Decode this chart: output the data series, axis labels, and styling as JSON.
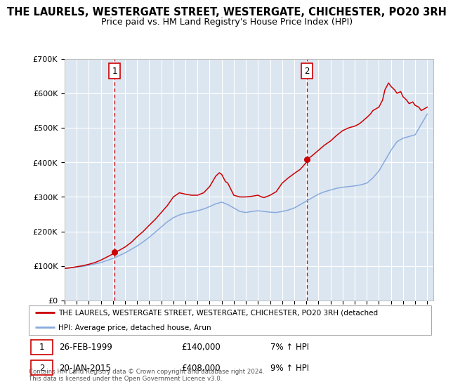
{
  "title": "THE LAURELS, WESTERGATE STREET, WESTERGATE, CHICHESTER, PO20 3RH",
  "subtitle": "Price paid vs. HM Land Registry's House Price Index (HPI)",
  "title_fontsize": 10.5,
  "subtitle_fontsize": 9,
  "ylim": [
    0,
    700000
  ],
  "yticks": [
    0,
    100000,
    200000,
    300000,
    400000,
    500000,
    600000,
    700000
  ],
  "ytick_labels": [
    "£0",
    "£100K",
    "£200K",
    "£300K",
    "£400K",
    "£500K",
    "£600K",
    "£700K"
  ],
  "xlim_start": 1995.0,
  "xlim_end": 2025.5,
  "sale1_date": 1999.15,
  "sale1_price": 140000,
  "sale1_label": "1",
  "sale1_text": "26-FEB-1999",
  "sale1_amount": "£140,000",
  "sale1_hpi": "7% ↑ HPI",
  "sale2_date": 2015.05,
  "sale2_price": 408000,
  "sale2_label": "2",
  "sale2_text": "20-JAN-2015",
  "sale2_amount": "£408,000",
  "sale2_hpi": "9% ↑ HPI",
  "property_color": "#cc0000",
  "hpi_color": "#88aadd",
  "background_color": "#dce6f1",
  "grid_color": "#ffffff",
  "legend_property": "THE LAURELS, WESTERGATE STREET, WESTERGATE, CHICHESTER, PO20 3RH (detached",
  "legend_hpi": "HPI: Average price, detached house, Arun",
  "footer_text": "Contains HM Land Registry data © Crown copyright and database right 2024.\nThis data is licensed under the Open Government Licence v3.0.",
  "hpi_years": [
    1995.0,
    1995.5,
    1996.0,
    1996.5,
    1997.0,
    1997.5,
    1998.0,
    1998.5,
    1999.0,
    1999.5,
    2000.0,
    2000.5,
    2001.0,
    2001.5,
    2002.0,
    2002.5,
    2003.0,
    2003.5,
    2004.0,
    2004.5,
    2005.0,
    2005.5,
    2006.0,
    2006.5,
    2007.0,
    2007.5,
    2008.0,
    2008.5,
    2009.0,
    2009.5,
    2010.0,
    2010.5,
    2011.0,
    2011.5,
    2012.0,
    2012.5,
    2013.0,
    2013.5,
    2014.0,
    2014.5,
    2015.0,
    2015.5,
    2016.0,
    2016.5,
    2017.0,
    2017.5,
    2018.0,
    2018.5,
    2019.0,
    2019.5,
    2020.0,
    2020.5,
    2021.0,
    2021.5,
    2022.0,
    2022.5,
    2023.0,
    2023.5,
    2024.0,
    2024.5,
    2025.0
  ],
  "hpi_values": [
    93000,
    95000,
    97000,
    99000,
    102000,
    106000,
    110000,
    116000,
    122000,
    130000,
    138000,
    148000,
    158000,
    170000,
    183000,
    198000,
    213000,
    228000,
    240000,
    248000,
    253000,
    256000,
    260000,
    265000,
    272000,
    280000,
    285000,
    278000,
    268000,
    258000,
    255000,
    258000,
    260000,
    258000,
    256000,
    255000,
    258000,
    262000,
    268000,
    278000,
    288000,
    298000,
    308000,
    315000,
    320000,
    325000,
    328000,
    330000,
    332000,
    335000,
    340000,
    355000,
    375000,
    405000,
    435000,
    460000,
    470000,
    475000,
    480000,
    510000,
    540000
  ],
  "prop_years": [
    1995.0,
    1995.5,
    1996.0,
    1996.5,
    1997.0,
    1997.5,
    1998.0,
    1998.5,
    1999.0,
    1999.15,
    1999.5,
    2000.0,
    2000.5,
    2001.0,
    2001.5,
    2002.0,
    2002.5,
    2003.0,
    2003.5,
    2004.0,
    2004.5,
    2005.0,
    2005.5,
    2006.0,
    2006.5,
    2007.0,
    2007.5,
    2007.8,
    2008.0,
    2008.3,
    2008.5,
    2009.0,
    2009.5,
    2010.0,
    2010.5,
    2011.0,
    2011.3,
    2011.5,
    2012.0,
    2012.5,
    2013.0,
    2013.5,
    2014.0,
    2014.5,
    2015.0,
    2015.05,
    2015.5,
    2016.0,
    2016.5,
    2017.0,
    2017.5,
    2018.0,
    2018.5,
    2019.0,
    2019.3,
    2019.5,
    2020.0,
    2020.3,
    2020.5,
    2021.0,
    2021.3,
    2021.5,
    2021.8,
    2022.0,
    2022.3,
    2022.5,
    2022.8,
    2023.0,
    2023.3,
    2023.5,
    2023.8,
    2024.0,
    2024.3,
    2024.5,
    2025.0
  ],
  "prop_values": [
    93000,
    95000,
    98000,
    101000,
    105000,
    110000,
    117000,
    126000,
    135000,
    140000,
    145000,
    155000,
    168000,
    185000,
    200000,
    218000,
    235000,
    255000,
    275000,
    300000,
    312000,
    308000,
    305000,
    305000,
    312000,
    330000,
    360000,
    370000,
    365000,
    345000,
    340000,
    305000,
    300000,
    300000,
    302000,
    305000,
    300000,
    298000,
    305000,
    315000,
    340000,
    355000,
    368000,
    380000,
    400000,
    408000,
    420000,
    435000,
    450000,
    462000,
    478000,
    492000,
    500000,
    505000,
    510000,
    515000,
    530000,
    540000,
    550000,
    560000,
    580000,
    610000,
    630000,
    620000,
    610000,
    600000,
    605000,
    590000,
    580000,
    570000,
    575000,
    565000,
    560000,
    550000,
    560000
  ]
}
